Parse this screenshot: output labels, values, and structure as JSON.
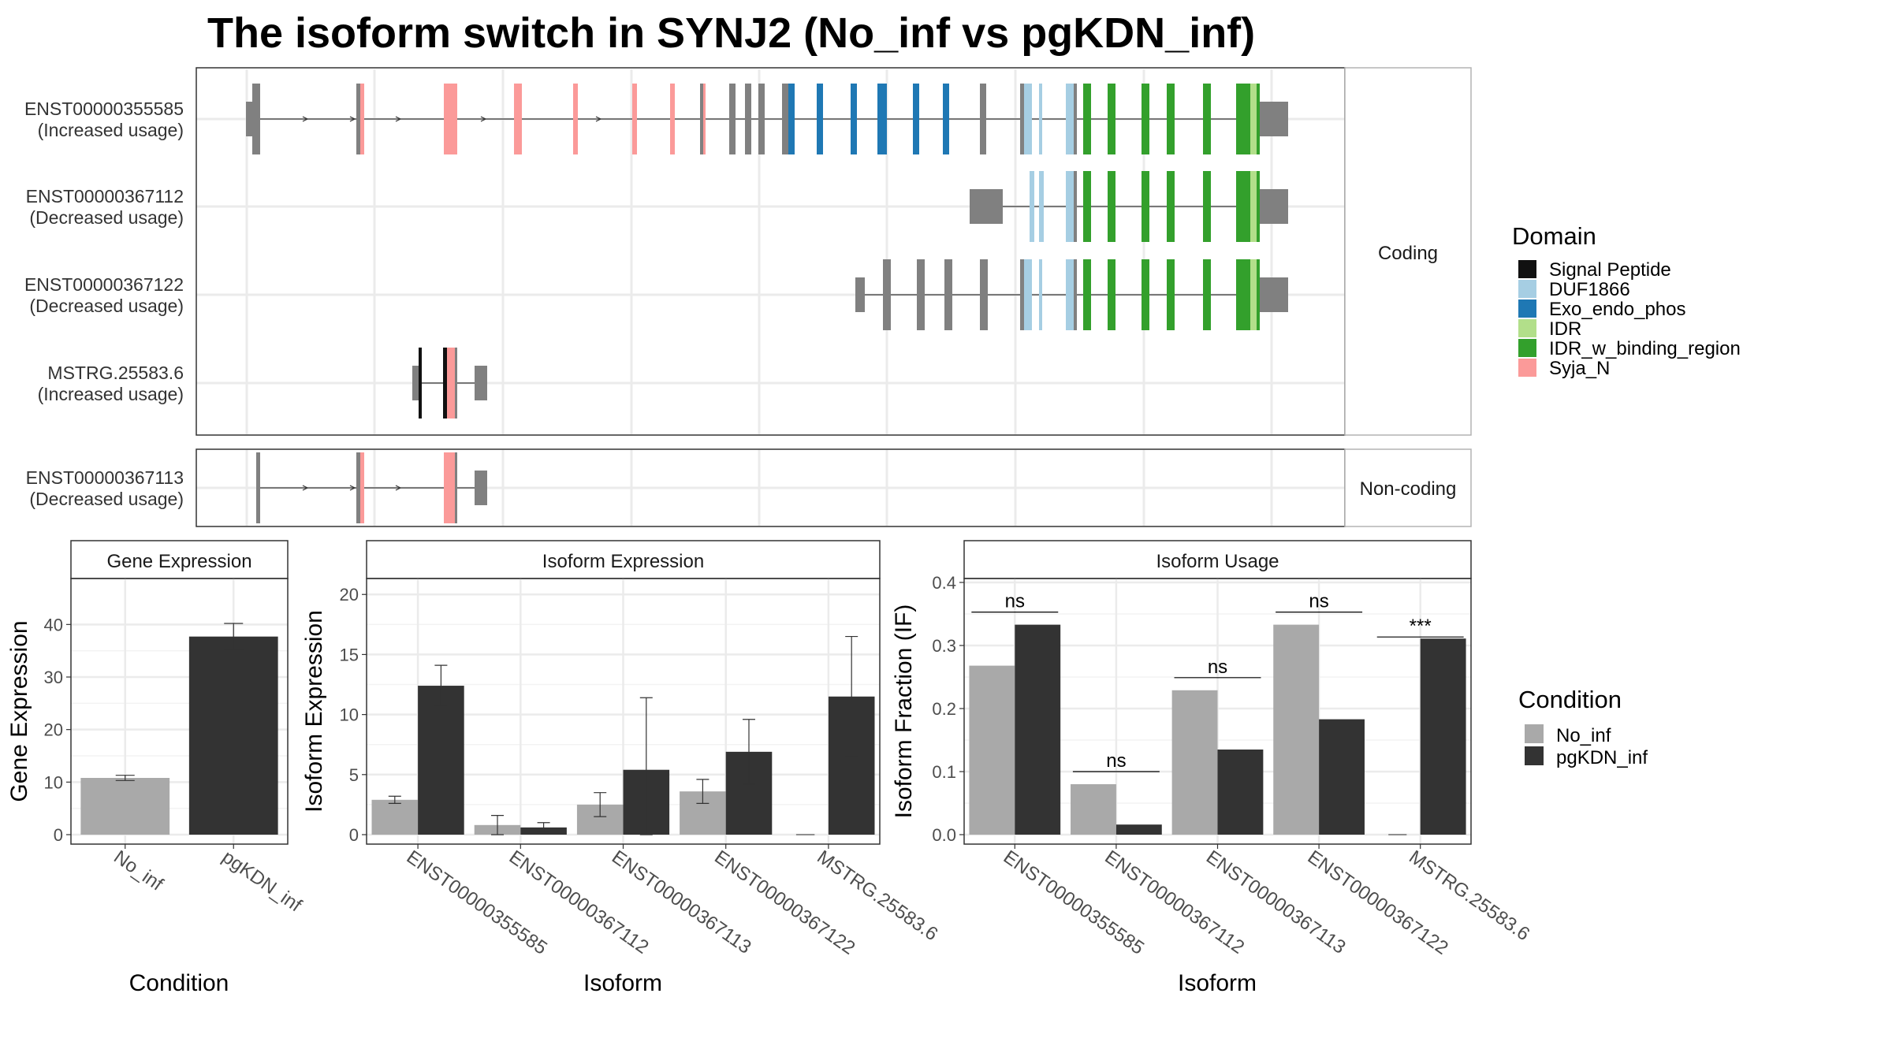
{
  "title": "The isoform switch in SYNJ2 (No_inf vs pgKDN_inf)",
  "colors": {
    "no_inf": "#a9a9a9",
    "pgkdn_inf": "#333333",
    "exon": "#808080",
    "grid": "#ebebeb"
  },
  "domain_legend": {
    "title": "Domain",
    "items": [
      {
        "name": "Signal Peptide",
        "color": "#111111"
      },
      {
        "name": "DUF1866",
        "color": "#a6cee3"
      },
      {
        "name": "Exo_endo_phos",
        "color": "#1f78b4"
      },
      {
        "name": "IDR",
        "color": "#b2df8a"
      },
      {
        "name": "IDR_w_binding_region",
        "color": "#33a02c"
      },
      {
        "name": "Syja_N",
        "color": "#fb9a99"
      }
    ]
  },
  "condition_legend": {
    "title": "Condition",
    "items": [
      {
        "name": "No_inf",
        "color": "#a9a9a9"
      },
      {
        "name": "pgKDN_inf",
        "color": "#333333"
      }
    ]
  },
  "transcripts": {
    "coding_strip": "Coding",
    "noncoding_strip": "Non-coding",
    "coding": [
      {
        "id": "ENST00000355585",
        "usage": "(Increased usage)"
      },
      {
        "id": "ENST00000367112",
        "usage": "(Decreased usage)"
      },
      {
        "id": "ENST00000367122",
        "usage": "(Decreased usage)"
      },
      {
        "id": "MSTRG.25583.6",
        "usage": "(Increased usage)"
      }
    ],
    "noncoding": [
      {
        "id": "ENST00000367113",
        "usage": "(Decreased usage)"
      }
    ]
  },
  "chart_data": [
    {
      "type": "bar",
      "title": "Gene Expression",
      "xlabel": "Condition",
      "ylabel": "Gene Expression",
      "categories": [
        "No_inf",
        "pgKDN_inf"
      ],
      "values": [
        10.8,
        37.7
      ],
      "errors": [
        [
          10.3,
          11.3
        ],
        [
          35.2,
          40.2
        ]
      ],
      "ylim": [
        0,
        48
      ],
      "yticks": [
        0,
        10,
        20,
        30,
        40
      ]
    },
    {
      "type": "bar",
      "title": "Isoform Expression",
      "xlabel": "Isoform",
      "ylabel": "Isoform Expression",
      "categories": [
        "ENST00000355585",
        "ENST00000367112",
        "ENST00000367113",
        "ENST00000367122",
        "MSTRG.25583.6"
      ],
      "series": [
        {
          "name": "No_inf",
          "values": [
            2.9,
            0.8,
            2.5,
            3.6,
            0.0
          ],
          "errors": [
            [
              2.6,
              3.2
            ],
            [
              0.0,
              1.6
            ],
            [
              1.5,
              3.5
            ],
            [
              2.6,
              4.6
            ],
            [
              0.0,
              0.0
            ]
          ]
        },
        {
          "name": "pgKDN_inf",
          "values": [
            12.4,
            0.6,
            5.4,
            6.9,
            11.5
          ],
          "errors": [
            [
              10.7,
              14.1
            ],
            [
              0.2,
              1.0
            ],
            [
              0.0,
              11.4
            ],
            [
              4.2,
              9.6
            ],
            [
              6.5,
              16.5
            ]
          ]
        }
      ],
      "ylim": [
        0,
        21
      ],
      "yticks": [
        0,
        5,
        10,
        15,
        20
      ]
    },
    {
      "type": "bar",
      "title": "Isoform Usage",
      "xlabel": "Isoform",
      "ylabel": "Isoform Fraction (IF)",
      "categories": [
        "ENST00000355585",
        "ENST00000367112",
        "ENST00000367113",
        "ENST00000367122",
        "MSTRG.25583.6"
      ],
      "series": [
        {
          "name": "No_inf",
          "values": [
            0.268,
            0.08,
            0.229,
            0.333,
            0.0
          ]
        },
        {
          "name": "pgKDN_inf",
          "values": [
            0.333,
            0.016,
            0.135,
            0.183,
            0.311
          ]
        }
      ],
      "significance": [
        "ns",
        "ns",
        "ns",
        "ns",
        "***"
      ],
      "ylim": [
        0,
        0.4
      ],
      "yticks": [
        0.0,
        0.1,
        0.2,
        0.3,
        0.4
      ]
    }
  ]
}
